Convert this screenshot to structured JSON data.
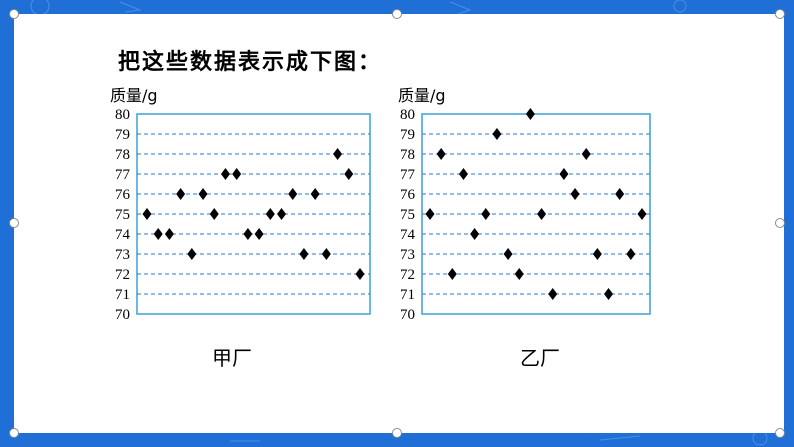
{
  "heading": "把这些数据表示成下图：",
  "colors": {
    "frame": "#1f6fd6",
    "plot_border": "#3aa0d8",
    "gridline": "#2a78c8",
    "marker": "#000000"
  },
  "chart_data": [
    {
      "type": "scatter",
      "name": "甲厂",
      "ylabel": "质量/g",
      "ylim": [
        70,
        80
      ],
      "yticks": [
        70,
        71,
        72,
        73,
        74,
        75,
        76,
        77,
        78,
        79,
        80
      ],
      "grid": true,
      "marker": "diamond",
      "x": [
        1,
        2,
        3,
        4,
        5,
        6,
        7,
        8,
        9,
        10,
        11,
        12,
        13,
        14,
        15,
        16,
        17,
        18,
        19,
        20
      ],
      "y": [
        75,
        74,
        74,
        76,
        73,
        76,
        75,
        77,
        77,
        74,
        74,
        75,
        75,
        76,
        73,
        76,
        73,
        78,
        77,
        72
      ]
    },
    {
      "type": "scatter",
      "name": "乙厂",
      "ylabel": "质量/g",
      "ylim": [
        70,
        80
      ],
      "yticks": [
        70,
        71,
        72,
        73,
        74,
        75,
        76,
        77,
        78,
        79,
        80
      ],
      "grid": true,
      "marker": "diamond",
      "x": [
        1,
        2,
        3,
        4,
        5,
        6,
        7,
        8,
        9,
        10,
        11,
        12,
        13,
        14,
        15,
        16,
        17,
        18,
        19,
        20
      ],
      "y": [
        75,
        78,
        72,
        77,
        74,
        75,
        79,
        73,
        72,
        80,
        75,
        71,
        77,
        76,
        78,
        73,
        71,
        76,
        73,
        75
      ]
    }
  ]
}
